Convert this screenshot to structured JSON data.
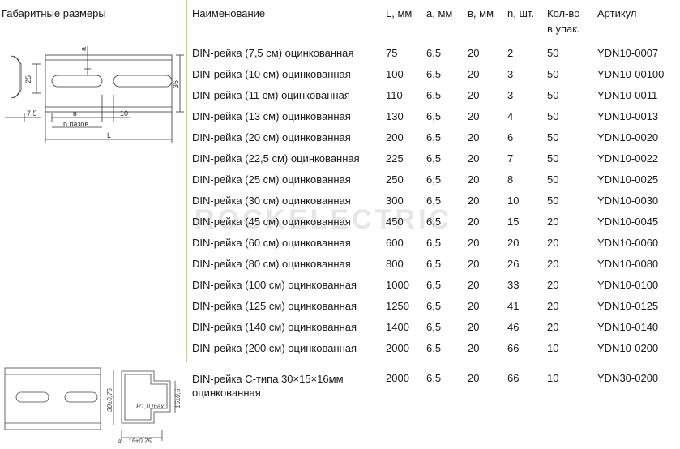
{
  "headers": {
    "dimensions": "Габаритные размеры",
    "name": "Наименование",
    "l": "L, мм",
    "a": "а, мм",
    "b": "в, мм",
    "n": "n, шт.",
    "qty_line1": "Кол-во",
    "qty_line2": "в упак.",
    "article": "Артикул"
  },
  "watermark": "ROCKELECTRIC",
  "rows": [
    {
      "name": "DIN-рейка (7,5 см) оцинкованная",
      "l": "75",
      "a": "6,5",
      "b": "20",
      "n": "2",
      "qty": "50",
      "article": "YDN10-0007"
    },
    {
      "name": "DIN-рейка (10 см) оцинкованная",
      "l": "100",
      "a": "6,5",
      "b": "20",
      "n": "3",
      "qty": "50",
      "article": "YDN10-00100"
    },
    {
      "name": "DIN-рейка (11 см) оцинкованная",
      "l": "110",
      "a": "6,5",
      "b": "20",
      "n": "3",
      "qty": "50",
      "article": "YDN10-0011"
    },
    {
      "name": "DIN-рейка (13 см) оцинкованная",
      "l": "130",
      "a": "6,5",
      "b": "20",
      "n": "4",
      "qty": "50",
      "article": "YDN10-0013"
    },
    {
      "name": "DIN-рейка (20 см) оцинкованная",
      "l": "200",
      "a": "6,5",
      "b": "20",
      "n": "6",
      "qty": "50",
      "article": "YDN10-0020"
    },
    {
      "name": "DIN-рейка (22,5 см) оцинкованная",
      "l": "225",
      "a": "6,5",
      "b": "20",
      "n": "7",
      "qty": "50",
      "article": "YDN10-0022"
    },
    {
      "name": "DIN-рейка (25 см) оцинкованная",
      "l": "250",
      "a": "6,5",
      "b": "20",
      "n": "8",
      "qty": "50",
      "article": "YDN10-0025"
    },
    {
      "name": "DIN-рейка (30 см) оцинкованная",
      "l": "300",
      "a": "6,5",
      "b": "20",
      "n": "10",
      "qty": "50",
      "article": "YDN10-0030"
    },
    {
      "name": "DIN-рейка (45 см) оцинкованная",
      "l": "450",
      "a": "6,5",
      "b": "20",
      "n": "15",
      "qty": "20",
      "article": "YDN10-0045"
    },
    {
      "name": "DIN-рейка (60 см) оцинкованная",
      "l": "600",
      "a": "6,5",
      "b": "20",
      "n": "20",
      "qty": "20",
      "article": "YDN10-0060"
    },
    {
      "name": "DIN-рейка (80 см) оцинкованная",
      "l": "800",
      "a": "6,5",
      "b": "20",
      "n": "26",
      "qty": "20",
      "article": "YDN10-0080"
    },
    {
      "name": "DIN-рейка (100 см) оцинкованная",
      "l": "1000",
      "a": "6,5",
      "b": "20",
      "n": "33",
      "qty": "20",
      "article": "YDN10-0100"
    },
    {
      "name": "DIN-рейка (125 см) оцинкованная",
      "l": "1250",
      "a": "6,5",
      "b": "20",
      "n": "41",
      "qty": "20",
      "article": "YDN10-0125"
    },
    {
      "name": "DIN-рейка (140 см) оцинкованная",
      "l": "1400",
      "a": "6,5",
      "b": "20",
      "n": "46",
      "qty": "20",
      "article": "YDN10-0140"
    },
    {
      "name": "DIN-рейка (200 см) оцинкованная",
      "l": "2000",
      "a": "6,5",
      "b": "20",
      "n": "66",
      "qty": "10",
      "article": "YDN10-0200"
    }
  ],
  "c_type": {
    "name": "DIN-рейка С-типа 30×15×16мм оцинкованная",
    "l": "2000",
    "a": "6,5",
    "b": "20",
    "n": "66",
    "qty": "10",
    "article": "YDN30-0200"
  },
  "drawing1": {
    "a": "a",
    "h25": "25",
    "h35": "35",
    "w75": "7,5",
    "b": "в",
    "w10": "10",
    "n_slots": "n пазов",
    "L": "L"
  },
  "drawing2": {
    "h30": "30±0,75",
    "r": "R1,0 max",
    "h16": "16±0,5",
    "w15": "15±0,75",
    "a_label": "A"
  }
}
